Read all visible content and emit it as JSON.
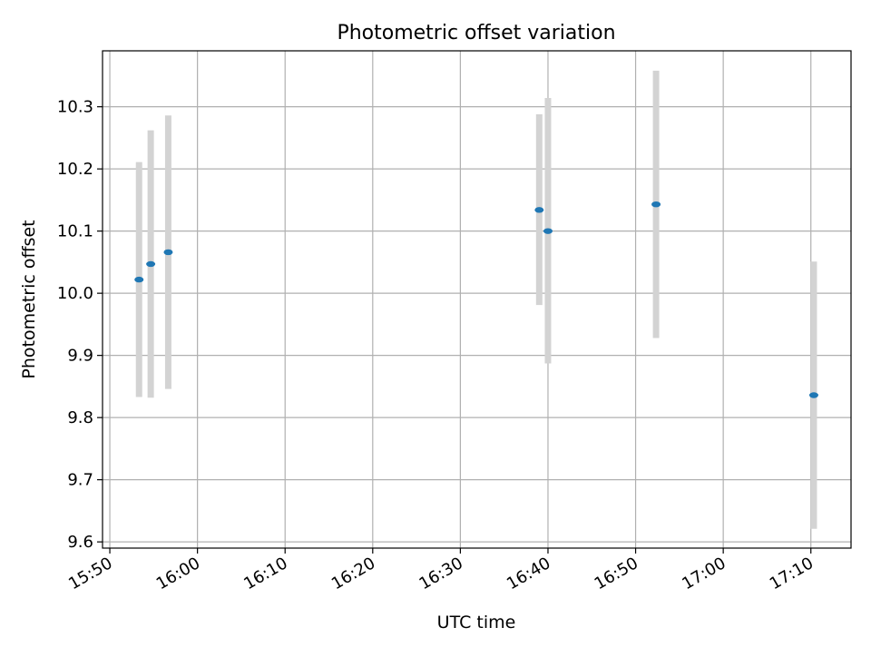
{
  "chart_data": {
    "type": "scatter",
    "title": "Photometric offset variation",
    "xlabel": "UTC time",
    "ylabel": "Photometric offset",
    "xlim": [
      "15:49:10",
      "17:14:35"
    ],
    "ylim": [
      9.59,
      10.39
    ],
    "grid": true,
    "x_ticks": [
      "15:50",
      "16:00",
      "16:10",
      "16:20",
      "16:30",
      "16:40",
      "16:50",
      "17:00",
      "17:10"
    ],
    "y_ticks": [
      "9.6",
      "9.7",
      "9.8",
      "9.9",
      "10.0",
      "10.1",
      "10.2",
      "10.3"
    ],
    "points": [
      {
        "x": "15:53:20",
        "y": 10.022,
        "ymin": 9.833,
        "ymax": 10.211
      },
      {
        "x": "15:54:40",
        "y": 10.047,
        "ymin": 9.832,
        "ymax": 10.262
      },
      {
        "x": "15:56:40",
        "y": 10.066,
        "ymin": 9.846,
        "ymax": 10.286
      },
      {
        "x": "16:39:00",
        "y": 10.134,
        "ymin": 9.981,
        "ymax": 10.288
      },
      {
        "x": "16:40:00",
        "y": 10.1,
        "ymin": 9.887,
        "ymax": 10.314
      },
      {
        "x": "16:52:20",
        "y": 10.143,
        "ymin": 9.928,
        "ymax": 10.358
      },
      {
        "x": "17:10:20",
        "y": 9.836,
        "ymin": 9.621,
        "ymax": 10.051
      }
    ],
    "colors": {
      "marker": "#1f77b4",
      "errorbar": "#d3d3d3",
      "grid": "#b0b0b0"
    }
  }
}
